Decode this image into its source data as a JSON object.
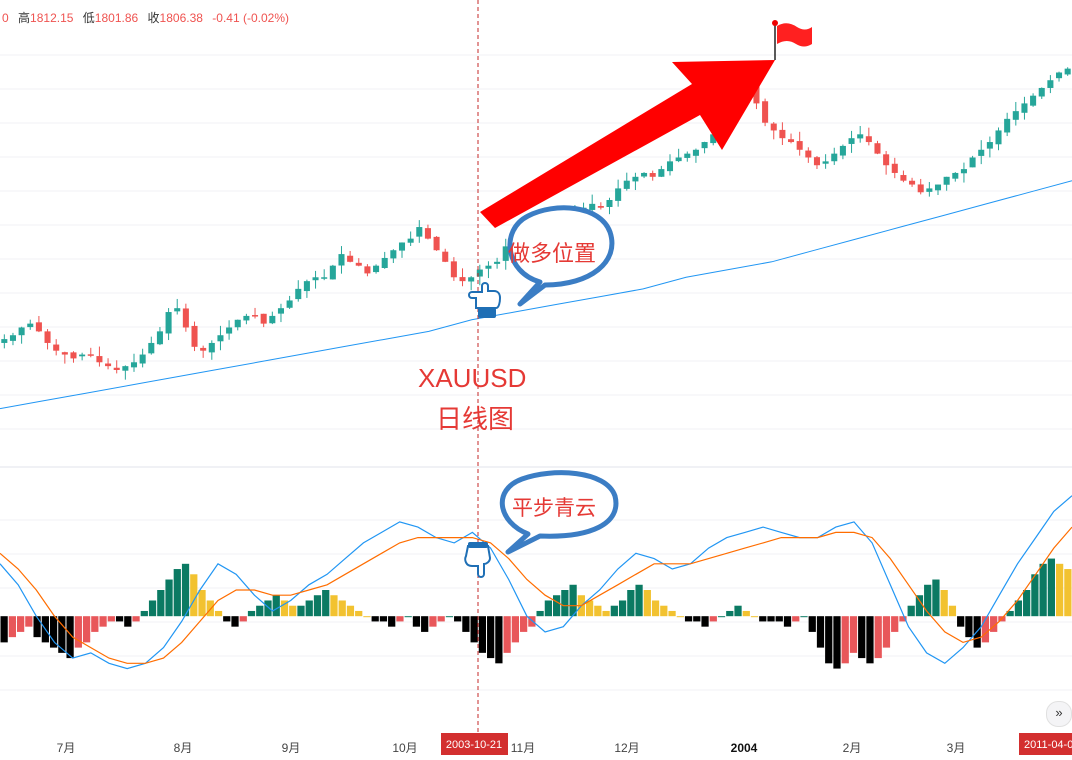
{
  "ohlc_bar": {
    "open_fragment": "0",
    "high_label": "高",
    "high_value": "1812.15",
    "low_label": "低",
    "low_value": "1801.86",
    "close_label": "收",
    "close_value": "1806.38",
    "change": "-0.41 (-0.02%)"
  },
  "annotations": {
    "symbol": "XAUUSD",
    "timeframe": "日线图",
    "long_entry": "做多位置",
    "indicator_note": "平步青云"
  },
  "crosshair": {
    "date_label": "2003-10-21"
  },
  "right_date_label": "2011-04-0",
  "scroll_icon": "chevrons-right-icon",
  "colors": {
    "candle_up": "#26a69a",
    "candle_down": "#ef5350",
    "ma_line": "#2196f3",
    "macd_line": "#2196f3",
    "signal_line": "#ff6d00",
    "hist_green": "#0b7a63",
    "hist_yellow": "#f2c230",
    "hist_red": "#e8575a",
    "hist_black": "#000000",
    "arrow": "#ff0000",
    "callout": "#3b7dc4",
    "crosshair": "#c62828"
  },
  "chart_data": [
    {
      "type": "candlestick",
      "title": "",
      "x_ticks": [
        "7月",
        "8月",
        "9月",
        "10月",
        "11月",
        "12月",
        "2004",
        "2月",
        "3月"
      ],
      "series": [
        {
          "values": [
            3.0,
            3.1,
            3.3,
            3.4,
            3.2,
            2.9,
            2.7,
            2.6,
            2.5,
            2.6,
            2.6,
            2.4,
            2.3,
            2.2,
            2.3,
            2.4,
            2.6,
            2.9,
            3.2,
            3.7,
            3.8,
            3.3,
            2.8,
            2.7,
            2.9,
            3.1,
            3.3,
            3.5,
            3.6,
            3.6,
            3.4,
            3.6,
            3.8,
            4.0,
            4.3,
            4.5,
            4.6,
            4.6,
            4.9,
            5.2,
            5.0,
            4.9,
            4.7,
            4.9,
            5.1,
            5.3,
            5.5,
            5.6,
            5.9,
            5.6,
            5.3,
            5.0,
            4.6,
            4.5,
            4.6,
            4.8,
            4.9,
            5.0,
            5.4,
            5.6,
            5.5,
            5.4,
            5.6,
            5.9,
            6.0,
            6.1,
            6.3,
            6.4,
            6.5,
            6.4,
            6.6,
            6.9,
            7.1,
            7.2,
            7.3,
            7.2,
            7.4,
            7.6,
            7.7,
            7.8,
            7.9,
            8.1,
            8.3,
            8.6,
            9.0,
            9.3,
            9.6,
            9.1,
            8.6,
            8.4,
            8.2,
            8.1,
            7.9,
            7.7,
            7.5,
            7.6,
            7.8,
            8.0,
            8.2,
            8.3,
            8.1,
            7.8,
            7.5,
            7.3,
            7.1,
            7.0,
            6.8,
            6.9,
            7.0,
            7.2,
            7.3,
            7.4,
            7.7,
            7.9,
            8.1,
            8.4,
            8.7,
            8.9,
            9.1,
            9.3,
            9.5,
            9.7,
            9.9,
            10.0
          ]
        },
        {
          "values": [
            1.2,
            1.4,
            1.6,
            1.8,
            2.0,
            2.2,
            2.4,
            2.6,
            2.8,
            3.0,
            3.2,
            3.5,
            3.7,
            3.9,
            4.1,
            4.3,
            4.6,
            4.8,
            5.0,
            5.3,
            5.6,
            5.9,
            6.2,
            6.5,
            6.8,
            7.1
          ]
        }
      ],
      "ylim": [
        0,
        11
      ],
      "grid": true
    },
    {
      "type": "macd",
      "title": "",
      "series": [
        {
          "values": [
            1.0,
            0.6,
            0.0,
            -0.5,
            -0.8,
            -0.7,
            -0.9,
            -1.0,
            -0.9,
            -0.6,
            -0.1,
            0.5,
            1.0,
            0.8,
            0.4,
            0.1,
            0.3,
            0.6,
            0.8,
            1.1,
            1.4,
            1.6,
            1.8,
            1.7,
            1.5,
            1.4,
            1.6,
            1.3,
            0.7,
            0.0,
            -0.3,
            -0.2,
            0.2,
            0.5,
            0.9,
            1.2,
            1.1,
            0.9,
            1.0,
            1.3,
            1.5,
            1.6,
            1.7,
            1.6,
            1.5,
            1.5,
            1.7,
            1.8,
            1.4,
            0.6,
            -0.2,
            -0.7,
            -0.9,
            -0.6,
            -0.2,
            0.4,
            1.0,
            1.5,
            2.0,
            2.3
          ]
        },
        {
          "values": [
            1.2,
            0.9,
            0.5,
            0.0,
            -0.4,
            -0.6,
            -0.8,
            -0.9,
            -0.9,
            -0.8,
            -0.5,
            -0.1,
            0.3,
            0.5,
            0.5,
            0.4,
            0.4,
            0.5,
            0.6,
            0.8,
            1.0,
            1.2,
            1.4,
            1.5,
            1.5,
            1.5,
            1.5,
            1.4,
            1.1,
            0.7,
            0.4,
            0.2,
            0.2,
            0.4,
            0.6,
            0.8,
            1.0,
            1.0,
            1.0,
            1.1,
            1.2,
            1.3,
            1.4,
            1.5,
            1.5,
            1.5,
            1.6,
            1.6,
            1.5,
            1.1,
            0.6,
            0.1,
            -0.3,
            -0.5,
            -0.4,
            -0.1,
            0.3,
            0.8,
            1.3,
            1.7
          ]
        }
      ],
      "histogram": [
        -0.5,
        -0.4,
        -0.3,
        -0.2,
        -0.4,
        -0.5,
        -0.6,
        -0.7,
        -0.8,
        -0.6,
        -0.5,
        -0.3,
        -0.2,
        -0.1,
        -0.1,
        -0.2,
        -0.1,
        0.1,
        0.3,
        0.5,
        0.7,
        0.9,
        1.0,
        0.8,
        0.5,
        0.3,
        0.1,
        -0.1,
        -0.2,
        -0.1,
        0.1,
        0.2,
        0.3,
        0.4,
        0.3,
        0.2,
        0.2,
        0.3,
        0.4,
        0.5,
        0.4,
        0.3,
        0.2,
        0.1,
        0.0,
        -0.1,
        -0.1,
        -0.2,
        -0.1,
        0.0,
        -0.2,
        -0.3,
        -0.2,
        -0.1,
        0.0,
        -0.1,
        -0.3,
        -0.5,
        -0.7,
        -0.8,
        -0.9,
        -0.7,
        -0.5,
        -0.3,
        -0.2,
        0.1,
        0.3,
        0.4,
        0.5,
        0.6,
        0.4,
        0.3,
        0.2,
        0.1,
        0.2,
        0.3,
        0.5,
        0.6,
        0.5,
        0.3,
        0.2,
        0.1,
        0.0,
        -0.1,
        -0.1,
        -0.2,
        -0.1,
        0.0,
        0.1,
        0.2,
        0.1,
        0.0,
        -0.1,
        -0.1,
        -0.1,
        -0.2,
        -0.1,
        0.0,
        -0.3,
        -0.6,
        -0.9,
        -1.0,
        -0.9,
        -0.7,
        -0.8,
        -0.9,
        -0.8,
        -0.6,
        -0.3,
        -0.1,
        0.2,
        0.4,
        0.6,
        0.7,
        0.5,
        0.2,
        -0.2,
        -0.4,
        -0.6,
        -0.5,
        -0.3,
        -0.1,
        0.1,
        0.3,
        0.5,
        0.8,
        1.0,
        1.1,
        1.0,
        0.9
      ],
      "ylim": [
        -1.6,
        2.6
      ]
    }
  ]
}
